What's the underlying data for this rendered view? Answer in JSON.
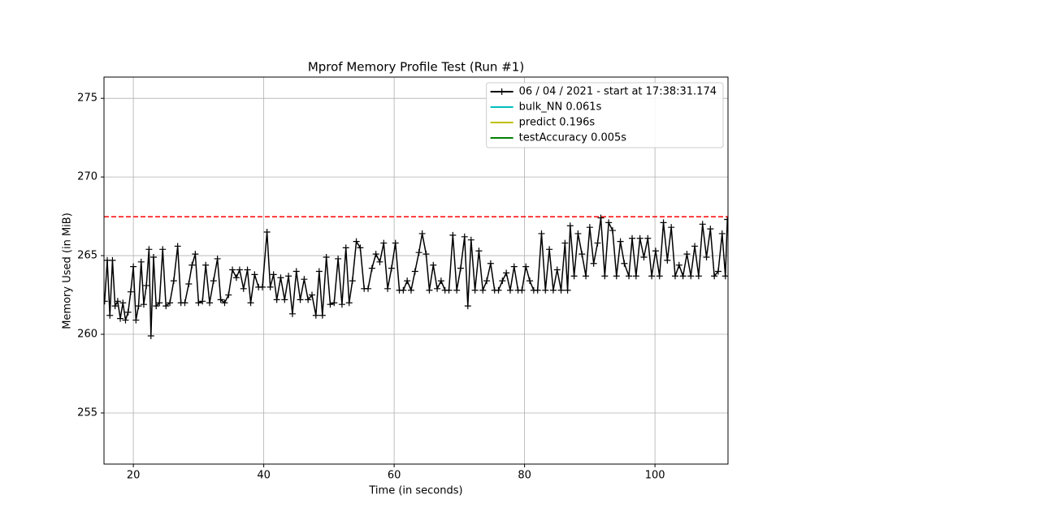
{
  "chart_data": {
    "type": "line",
    "title": "Mprof Memory Profile Test (Run #1)",
    "x_label": "Time (in seconds)",
    "y_label": "Memory Used (in MiB)",
    "xlim": [
      15.5,
      111.2
    ],
    "ylim": [
      251.75,
      276.35
    ],
    "xticks": [
      20,
      40,
      60,
      80,
      100
    ],
    "yticks": [
      255,
      260,
      265,
      270,
      275
    ],
    "grid": true,
    "legend": "upper right",
    "x": [
      15.6,
      16.0,
      16.4,
      16.8,
      17.2,
      17.6,
      18.0,
      18.4,
      18.8,
      19.2,
      19.6,
      20.0,
      20.4,
      20.8,
      21.2,
      21.6,
      22.0,
      22.4,
      22.7,
      23.1,
      23.5,
      24.0,
      24.5,
      25.0,
      25.6,
      26.2,
      26.8,
      27.3,
      27.9,
      28.5,
      29.0,
      29.5,
      30.0,
      30.6,
      31.1,
      31.7,
      32.3,
      32.9,
      33.4,
      34.0,
      34.6,
      35.2,
      35.8,
      36.3,
      36.9,
      37.5,
      38.0,
      38.6,
      39.2,
      39.8,
      40.5,
      41.0,
      41.5,
      42.0,
      42.6,
      43.2,
      43.8,
      44.4,
      45.0,
      45.6,
      46.2,
      46.8,
      47.4,
      48.0,
      48.5,
      49.0,
      49.6,
      50.2,
      50.8,
      51.4,
      52.0,
      52.6,
      53.1,
      53.6,
      54.2,
      54.8,
      55.4,
      56.0,
      56.6,
      57.2,
      57.8,
      58.4,
      59.0,
      59.6,
      60.2,
      60.8,
      61.4,
      62.0,
      62.6,
      63.2,
      63.8,
      64.3,
      64.9,
      65.4,
      66.0,
      66.6,
      67.2,
      67.8,
      68.4,
      69.0,
      69.6,
      70.2,
      70.8,
      71.3,
      71.8,
      72.4,
      73.0,
      73.6,
      74.2,
      74.8,
      75.4,
      76.0,
      76.6,
      77.2,
      77.8,
      78.4,
      79.0,
      79.6,
      80.2,
      80.8,
      81.4,
      82.0,
      82.6,
      83.2,
      83.8,
      84.4,
      85.0,
      85.6,
      86.2,
      86.6,
      87.0,
      87.6,
      88.2,
      88.8,
      89.4,
      90.0,
      90.6,
      91.2,
      91.7,
      92.3,
      92.9,
      93.5,
      94.1,
      94.7,
      95.3,
      96.0,
      96.5,
      97.1,
      97.7,
      98.3,
      98.9,
      99.5,
      100.1,
      100.7,
      101.3,
      101.9,
      102.5,
      103.1,
      103.7,
      104.3,
      104.9,
      105.5,
      106.1,
      106.7,
      107.3,
      107.9,
      108.5,
      109.1,
      109.7,
      110.3,
      110.8,
      111.1
    ],
    "series": [
      {
        "name": "06 / 04 / 2021 - start at 17:38:31.174",
        "color": "#000000",
        "values": [
          262.1,
          264.7,
          261.2,
          264.7,
          261.8,
          262.1,
          261.0,
          262.0,
          260.9,
          261.4,
          262.7,
          264.3,
          260.9,
          261.8,
          264.6,
          261.9,
          263.1,
          265.4,
          259.9,
          264.9,
          261.8,
          262.0,
          265.4,
          261.8,
          262.0,
          263.4,
          265.6,
          262.0,
          262.0,
          263.2,
          264.4,
          265.1,
          262.0,
          262.1,
          264.4,
          262.0,
          263.4,
          264.8,
          262.2,
          262.0,
          262.5,
          264.1,
          263.6,
          264.1,
          262.9,
          264.1,
          262.0,
          263.8,
          263.0,
          263.0,
          266.5,
          263.0,
          263.8,
          262.2,
          263.6,
          262.2,
          263.7,
          261.3,
          264.0,
          262.2,
          263.5,
          262.2,
          262.5,
          261.2,
          264.0,
          261.2,
          264.9,
          261.9,
          262.0,
          264.8,
          261.9,
          265.5,
          262.0,
          263.4,
          265.9,
          265.5,
          262.9,
          262.9,
          264.2,
          265.1,
          264.6,
          265.8,
          262.9,
          264.2,
          265.8,
          262.8,
          262.8,
          263.4,
          262.8,
          264.0,
          265.2,
          266.4,
          265.1,
          262.8,
          264.4,
          262.9,
          263.4,
          262.8,
          262.8,
          266.3,
          262.8,
          264.2,
          266.2,
          261.8,
          266.0,
          262.8,
          265.3,
          262.8,
          263.4,
          264.5,
          262.8,
          262.8,
          263.4,
          263.9,
          262.8,
          264.3,
          262.8,
          262.8,
          264.3,
          263.4,
          262.8,
          262.8,
          266.4,
          262.8,
          265.4,
          262.8,
          264.1,
          262.8,
          265.8,
          262.8,
          266.9,
          263.7,
          266.4,
          265.1,
          263.7,
          266.8,
          264.5,
          265.8,
          267.4,
          263.7,
          267.1,
          266.6,
          263.7,
          265.9,
          264.5,
          263.7,
          266.1,
          263.7,
          266.1,
          264.9,
          266.1,
          263.7,
          265.3,
          263.7,
          267.1,
          264.7,
          266.8,
          263.7,
          264.4,
          263.7,
          265.1,
          263.7,
          265.6,
          263.7,
          267.0,
          264.9,
          266.7,
          263.7,
          264.0,
          266.4,
          263.7,
          267.3
        ]
      }
    ],
    "functions": [
      {
        "name": "bulk_NN 0.061s",
        "color": "#00bfbf"
      },
      {
        "name": "predict 0.196s",
        "color": "#bfbf00"
      },
      {
        "name": "testAccuracy 0.005s",
        "color": "#008000"
      }
    ],
    "hlines": [
      {
        "value": 267.47,
        "color": "#ff0000"
      }
    ]
  }
}
